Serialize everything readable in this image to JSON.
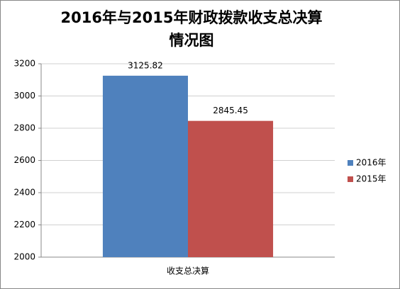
{
  "chart_data": {
    "type": "bar",
    "title": [
      "2016年与2015年财政拨款收支总决算",
      "情况图"
    ],
    "categories": [
      "收支总决算"
    ],
    "series": [
      {
        "name": "2016年",
        "color": "#4f81bd",
        "values": [
          3125.82
        ]
      },
      {
        "name": "2015年",
        "color": "#c0504d",
        "values": [
          2845.45
        ]
      }
    ],
    "ylim": [
      2000,
      3200
    ],
    "yticks": [
      2000,
      2200,
      2400,
      2600,
      2800,
      3000,
      3200
    ],
    "grid": true,
    "legend": "right"
  }
}
